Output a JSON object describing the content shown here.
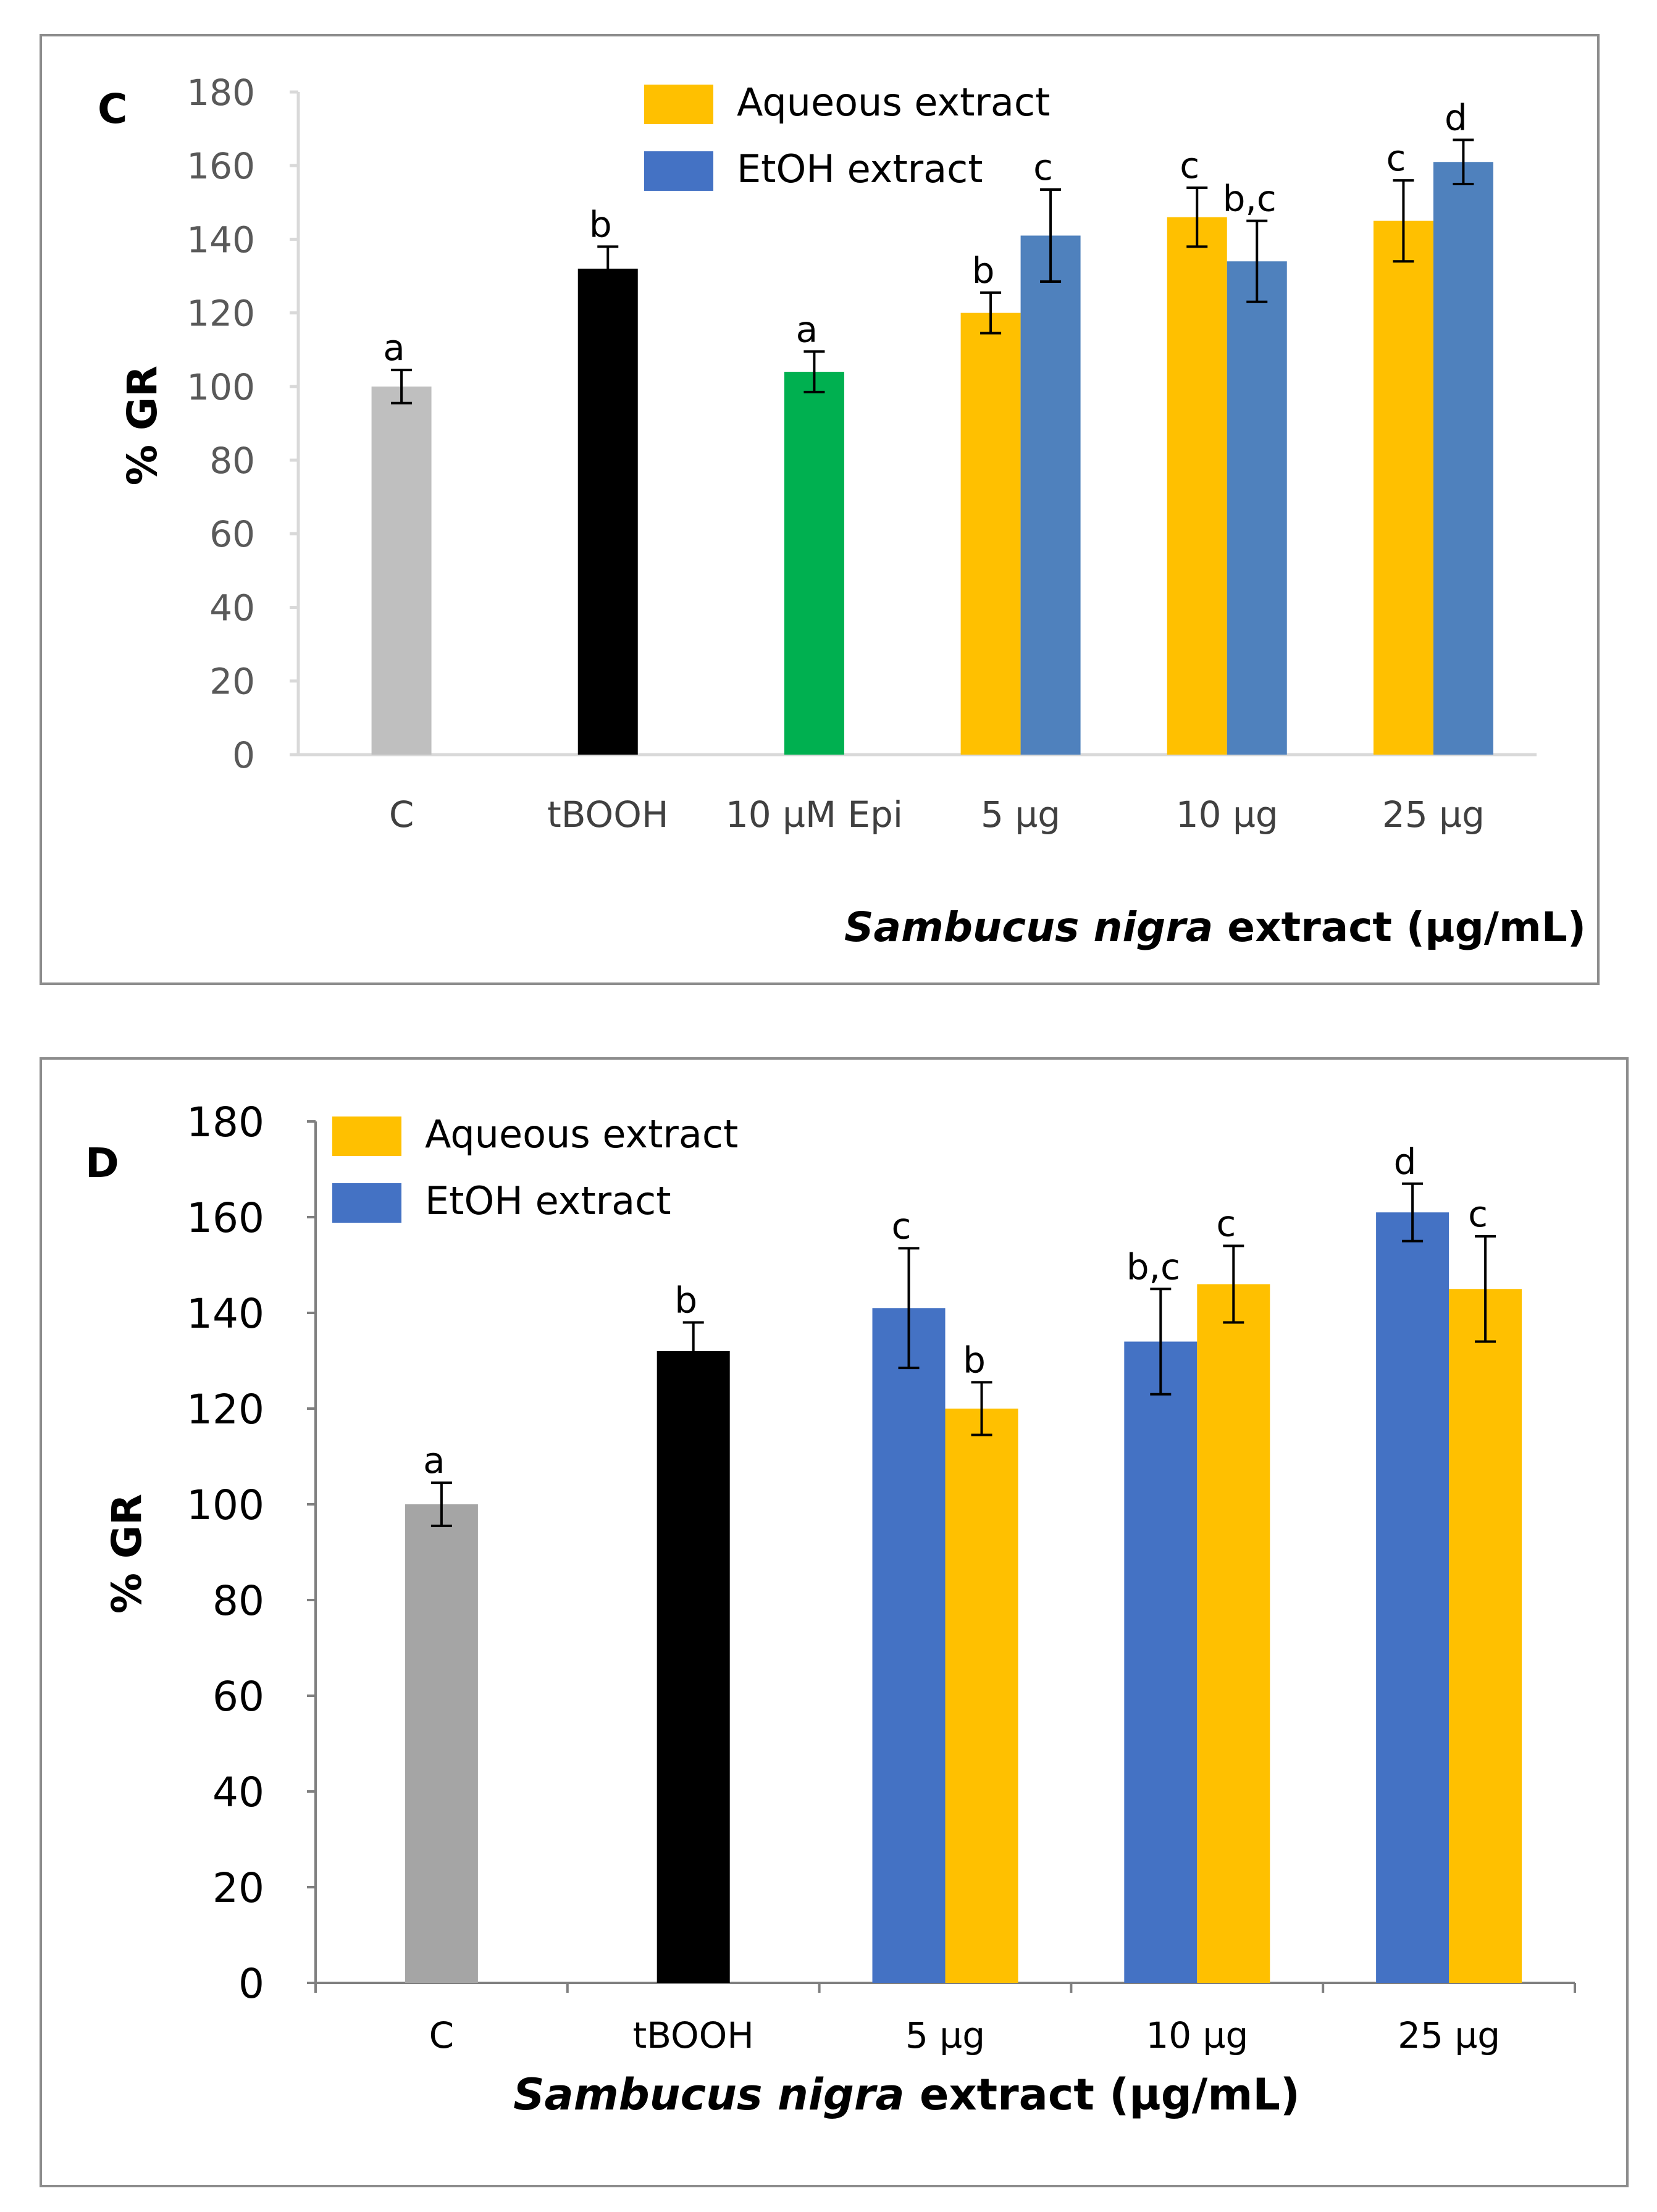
{
  "charts": [
    {
      "panel_letter": "C",
      "chart_data": {
        "type": "bar",
        "title": "",
        "xlabel_italic": "Sambucus nigra",
        "xlabel_rest": " extract (µg/mL)",
        "ylabel": "% GR",
        "ylim": [
          0,
          180
        ],
        "yticks": [
          0,
          20,
          40,
          60,
          80,
          100,
          120,
          140,
          160,
          180
        ],
        "categories": [
          "C",
          "tBOOH",
          "10 µM Epi",
          "5 µg",
          "10 µg",
          "25 µg"
        ],
        "legend": [
          {
            "label": "Aqueous extract",
            "color": "#FFC000"
          },
          {
            "label": "EtOH extract",
            "color": "#4472C4"
          }
        ],
        "bars": [
          {
            "category": 0,
            "series": "Control",
            "value": 100,
            "error": 4.5,
            "sig": "a",
            "color": "#BFBFBF"
          },
          {
            "category": 1,
            "series": "tBOOH",
            "value": 132,
            "error": 6,
            "sig": "b",
            "color": "#000000"
          },
          {
            "category": 2,
            "series": "10 µM Epi",
            "value": 104,
            "error": 5.5,
            "sig": "a",
            "color": "#00B050"
          },
          {
            "category": 3,
            "series": "Aqueous extract",
            "value": 120,
            "error": 5.5,
            "sig": "b",
            "color": "#FFC000"
          },
          {
            "category": 3,
            "series": "EtOH extract",
            "value": 141,
            "error": 12.5,
            "sig": "c",
            "color": "#4F81BD"
          },
          {
            "category": 4,
            "series": "Aqueous extract",
            "value": 146,
            "error": 8,
            "sig": "c",
            "color": "#FFC000"
          },
          {
            "category": 4,
            "series": "EtOH extract",
            "value": 134,
            "error": 11,
            "sig": "b,c",
            "color": "#4F81BD"
          },
          {
            "category": 5,
            "series": "Aqueous extract",
            "value": 145,
            "error": 11,
            "sig": "c",
            "color": "#FFC000"
          },
          {
            "category": 5,
            "series": "EtOH extract",
            "value": 161,
            "error": 6,
            "sig": "d",
            "color": "#4F81BD"
          }
        ]
      }
    },
    {
      "panel_letter": "D",
      "chart_data": {
        "type": "bar",
        "title": "",
        "xlabel_italic": "Sambucus nigra",
        "xlabel_rest": " extract (µg/mL)",
        "ylabel": "% GR",
        "ylim": [
          0,
          180
        ],
        "yticks": [
          0,
          20,
          40,
          60,
          80,
          100,
          120,
          140,
          160,
          180
        ],
        "categories": [
          "C",
          "tBOOH",
          "5 µg",
          "10 µg",
          "25 µg"
        ],
        "legend": [
          {
            "label": "Aqueous extract",
            "color": "#FFC000"
          },
          {
            "label": "EtOH extract",
            "color": "#4472C4"
          }
        ],
        "bars": [
          {
            "category": 0,
            "series": "Control",
            "value": 100,
            "error": 4.5,
            "sig": "a",
            "color": "#A5A5A5"
          },
          {
            "category": 1,
            "series": "tBOOH",
            "value": 132,
            "error": 6,
            "sig": "b",
            "color": "#000000"
          },
          {
            "category": 2,
            "series": "EtOH extract",
            "value": 141,
            "error": 12.5,
            "sig": "c",
            "color": "#4472C4"
          },
          {
            "category": 2,
            "series": "Aqueous extract",
            "value": 120,
            "error": 5.5,
            "sig": "b",
            "color": "#FFC000"
          },
          {
            "category": 3,
            "series": "EtOH extract",
            "value": 134,
            "error": 11,
            "sig": "b,c",
            "color": "#4472C4"
          },
          {
            "category": 3,
            "series": "Aqueous extract",
            "value": 146,
            "error": 8,
            "sig": "c",
            "color": "#FFC000"
          },
          {
            "category": 4,
            "series": "EtOH extract",
            "value": 161,
            "error": 6,
            "sig": "d",
            "color": "#4472C4"
          },
          {
            "category": 4,
            "series": "Aqueous extract",
            "value": 145,
            "error": 11,
            "sig": "c",
            "color": "#FFC000"
          }
        ]
      }
    }
  ]
}
